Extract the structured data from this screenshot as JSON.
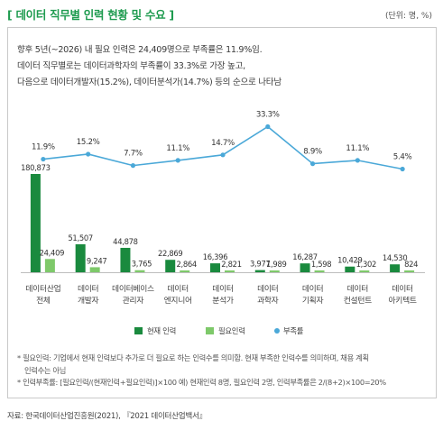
{
  "header": {
    "title": "[ 데이터 직무별 인력 현황 및 수요 ]",
    "unit": "(단위: 명, %)"
  },
  "summary": {
    "line1": "향후 5년(~2026) 내 필요 인력은 24,409명으로 부족률은 11.9%임.",
    "line2": "데이터 직무별로는 데이터과학자의 부족률이 33.3%로 가장 높고,",
    "line3": "다음으로 데이터개발자(15.2%), 데이터분석가(14.7%) 등의 순으로 나타남"
  },
  "chart_data": {
    "type": "bar",
    "categories": [
      [
        "데이터산업",
        "전체"
      ],
      [
        "데이터",
        "개발자"
      ],
      [
        "데이터베이스",
        "관리자"
      ],
      [
        "데이터",
        "엔지니어"
      ],
      [
        "데이터",
        "분석가"
      ],
      [
        "데이터",
        "과학자"
      ],
      [
        "데이터",
        "기획자"
      ],
      [
        "데이터",
        "컨설턴트"
      ],
      [
        "데이터",
        "아키텍트"
      ]
    ],
    "series": [
      {
        "name": "현재 인력",
        "type": "bar",
        "color": "#1a8a3e",
        "values": [
          180873,
          51507,
          44878,
          22869,
          16396,
          3977,
          16287,
          10429,
          14530
        ],
        "labels": [
          "180,873",
          "51,507",
          "44,878",
          "22,869",
          "16,396",
          "3,977",
          "16,287",
          "10,429",
          "14,530"
        ]
      },
      {
        "name": "필요인력",
        "type": "bar",
        "color": "#7ec96a",
        "values": [
          24409,
          9247,
          3765,
          2864,
          2821,
          1989,
          1598,
          1302,
          824
        ],
        "labels": [
          "24,409",
          "9,247",
          "3,765",
          "2,864",
          "2,821",
          "1,989",
          "1,598",
          "1,302",
          "824"
        ]
      },
      {
        "name": "부족률",
        "type": "line",
        "color": "#4aa8d8",
        "values": [
          11.9,
          15.2,
          7.7,
          11.1,
          14.7,
          33.3,
          8.9,
          11.1,
          5.4
        ],
        "labels": [
          "11.9%",
          "15.2%",
          "7.7%",
          "11.1%",
          "14.7%",
          "33.3%",
          "8.9%",
          "11.1%",
          "5.4%"
        ]
      }
    ],
    "legend": "bottom-center",
    "grid": false
  },
  "notes": {
    "note1": "* 필요인력: 기업에서 현재 인력보다 추가로 더 필요로 하는 인력수를 의미함. 현재 부족한 인력수를 의미하며, 채용 계획",
    "note1b": "인력수는 아님",
    "note2": "* 인력부족률: [필요인력/(현재인력+필요인력)]×100 예) 현재인력 8명, 필요인력 2명, 인력부족률은 2/(8+2)×100=20%"
  },
  "source": "자료: 한국데이터산업진흥원(2021), 『2021 데이터산업백서』"
}
